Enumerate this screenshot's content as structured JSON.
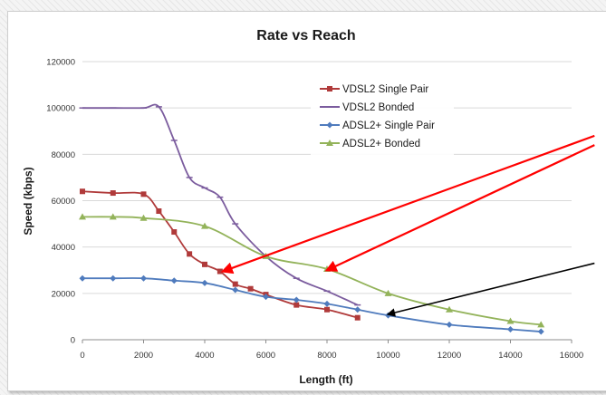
{
  "chart_data": {
    "type": "line",
    "title": "Rate vs Reach",
    "xlabel": "Length (ft)",
    "ylabel": "Speed (kbps)",
    "xlim": [
      0,
      16000
    ],
    "ylim": [
      0,
      120000
    ],
    "xticks": [
      0,
      2000,
      4000,
      6000,
      8000,
      10000,
      12000,
      14000,
      16000
    ],
    "yticks": [
      0,
      20000,
      40000,
      60000,
      80000,
      100000,
      120000
    ],
    "grid": "horizontal",
    "legend_position": "top-right",
    "series": [
      {
        "name": "VDSL2 Single Pair",
        "color": "#b03a3a",
        "marker": "square",
        "points": [
          [
            0,
            64000
          ],
          [
            1000,
            63300
          ],
          [
            2000,
            62800
          ],
          [
            2500,
            55500
          ],
          [
            3000,
            46500
          ],
          [
            3500,
            37000
          ],
          [
            4000,
            32500
          ],
          [
            4500,
            29500
          ],
          [
            5000,
            24000
          ],
          [
            5500,
            22000
          ],
          [
            6000,
            19500
          ],
          [
            7000,
            15000
          ],
          [
            8000,
            13000
          ],
          [
            9000,
            9500
          ]
        ]
      },
      {
        "name": "VDSL2 Bonded",
        "color": "#7b5c9e",
        "marker": "dash",
        "points": [
          [
            0,
            100000
          ],
          [
            1000,
            100000
          ],
          [
            2000,
            100000
          ],
          [
            2500,
            100500
          ],
          [
            3000,
            86000
          ],
          [
            3500,
            70000
          ],
          [
            4000,
            65500
          ],
          [
            4500,
            61500
          ],
          [
            5000,
            50000
          ],
          [
            6000,
            36000
          ],
          [
            7000,
            26500
          ],
          [
            8000,
            21000
          ],
          [
            9000,
            15000
          ]
        ]
      },
      {
        "name": "ADSL2+ Single Pair",
        "color": "#4f7bbd",
        "marker": "diamond",
        "points": [
          [
            0,
            26500
          ],
          [
            1000,
            26500
          ],
          [
            2000,
            26500
          ],
          [
            3000,
            25500
          ],
          [
            4000,
            24500
          ],
          [
            5000,
            21500
          ],
          [
            6000,
            18500
          ],
          [
            7000,
            17200
          ],
          [
            8000,
            15500
          ],
          [
            9000,
            13000
          ],
          [
            10000,
            10500
          ],
          [
            12000,
            6500
          ],
          [
            14000,
            4500
          ],
          [
            15000,
            3500
          ]
        ]
      },
      {
        "name": "ADSL2+ Bonded",
        "color": "#93b35a",
        "marker": "triangle",
        "points": [
          [
            0,
            53000
          ],
          [
            1000,
            53000
          ],
          [
            2000,
            52500
          ],
          [
            4000,
            49000
          ],
          [
            6000,
            36000
          ],
          [
            8000,
            30500
          ],
          [
            10000,
            20000
          ],
          [
            12000,
            13000
          ],
          [
            14000,
            8000
          ],
          [
            15000,
            6500
          ]
        ]
      }
    ],
    "annotations": [
      {
        "type": "arrow",
        "color": "#ff0000",
        "from": [
          16750,
          88000
        ],
        "to": [
          4600,
          29500
        ]
      },
      {
        "type": "arrow",
        "color": "#ff0000",
        "from": [
          16750,
          84000
        ],
        "to": [
          8000,
          30000
        ]
      },
      {
        "type": "arrow",
        "color": "#000000",
        "from": [
          16750,
          33000
        ],
        "to": [
          10000,
          11000
        ]
      }
    ]
  }
}
